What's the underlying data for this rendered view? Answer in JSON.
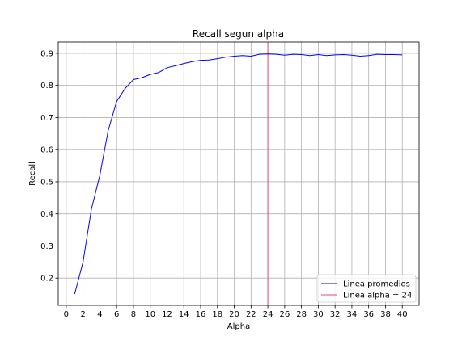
{
  "chart_data": {
    "type": "line",
    "title": "Recall segun alpha",
    "xlabel": "Alpha",
    "ylabel": "Recall",
    "xlim": [
      -0.95,
      42
    ],
    "ylim": [
      0.115,
      0.935
    ],
    "xticks": [
      0,
      2,
      4,
      6,
      8,
      10,
      12,
      14,
      16,
      18,
      20,
      22,
      24,
      26,
      28,
      30,
      32,
      34,
      36,
      38,
      40
    ],
    "yticks": [
      0.2,
      0.3,
      0.4,
      0.5,
      0.6,
      0.7,
      0.8,
      0.9
    ],
    "grid": true,
    "legend_position": "lower-right",
    "series": [
      {
        "name": "Linea promedios",
        "color": "#0000ff",
        "x": [
          1,
          2,
          3,
          4,
          5,
          6,
          7,
          8,
          9,
          10,
          11,
          12,
          13,
          14,
          15,
          16,
          17,
          18,
          19,
          20,
          21,
          22,
          23,
          24,
          25,
          26,
          27,
          28,
          29,
          30,
          31,
          32,
          33,
          34,
          35,
          36,
          37,
          38,
          39,
          40
        ],
        "values": [
          0.15,
          0.25,
          0.415,
          0.52,
          0.66,
          0.75,
          0.79,
          0.818,
          0.824,
          0.834,
          0.84,
          0.855,
          0.861,
          0.868,
          0.874,
          0.878,
          0.879,
          0.883,
          0.888,
          0.891,
          0.893,
          0.891,
          0.897,
          0.898,
          0.897,
          0.894,
          0.897,
          0.896,
          0.893,
          0.896,
          0.893,
          0.895,
          0.896,
          0.894,
          0.891,
          0.893,
          0.897,
          0.896,
          0.896,
          0.895
        ]
      }
    ],
    "vline": {
      "name": "Linea alpha = 24",
      "x": 24,
      "color": "#e8495e"
    }
  }
}
